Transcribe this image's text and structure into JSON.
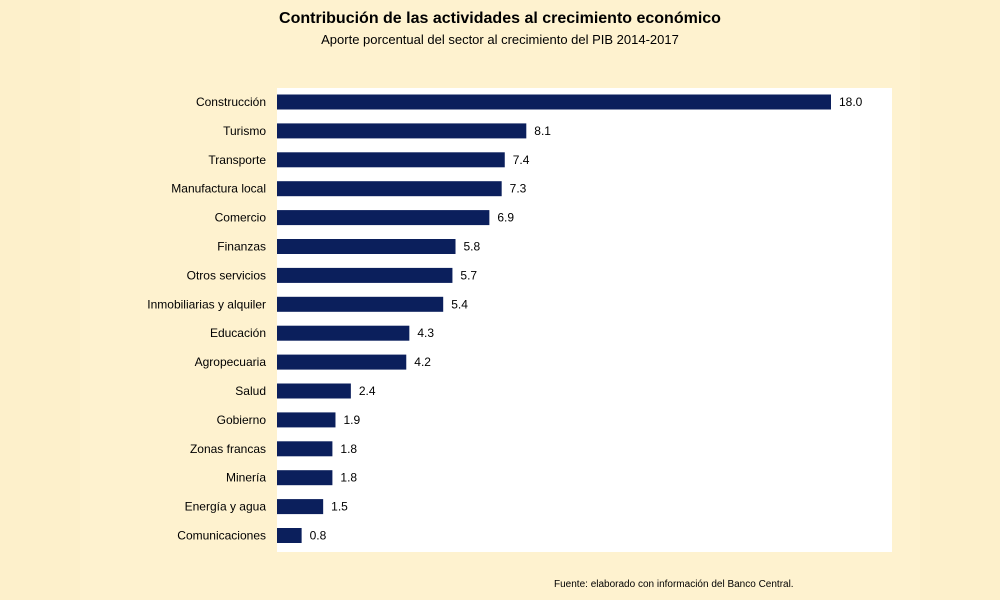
{
  "chart_data": {
    "type": "bar",
    "orientation": "horizontal",
    "title": "Contribución de las actividades al crecimiento económico",
    "subtitle": "Aporte porcentual del sector al crecimiento del PIB  2014-2017",
    "categories": [
      "Construcción",
      "Turismo",
      "Transporte",
      "Manufactura local",
      "Comercio",
      "Finanzas",
      "Otros servicios",
      "Inmobiliarias y alquiler",
      "Educación",
      "Agropecuaria",
      "Salud",
      "Gobierno",
      "Zonas francas",
      "Minería",
      "Energía y agua",
      "Comunicaciones"
    ],
    "values": [
      18.0,
      8.1,
      7.4,
      7.3,
      6.9,
      5.8,
      5.7,
      5.4,
      4.3,
      4.2,
      2.4,
      1.9,
      1.8,
      1.8,
      1.5,
      0.8
    ],
    "value_labels": [
      "18.0",
      "8.1",
      "7.4",
      "7.3",
      "6.9",
      "5.8",
      "5.7",
      "5.4",
      "4.3",
      "4.2",
      "2.4",
      "1.9",
      "1.8",
      "1.8",
      "1.5",
      "0.8"
    ],
    "xlim": [
      0,
      20
    ],
    "grid": false,
    "legend": "none",
    "bar_color": "#0b1f5c",
    "plot_background": "#ffffff"
  },
  "footer": "Fuente: elaborado con información del Banco Central."
}
